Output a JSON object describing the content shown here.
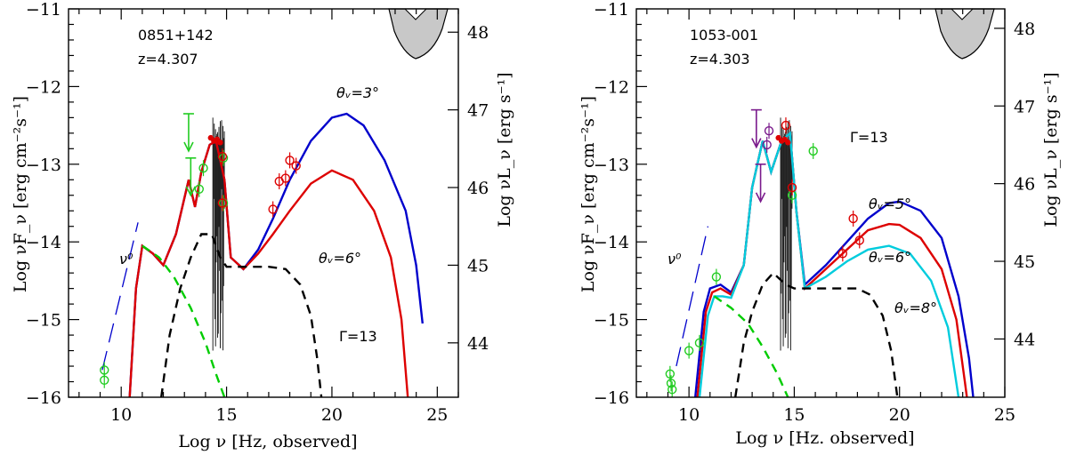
{
  "chart_data": [
    {
      "type": "line",
      "source_name": "0851+142",
      "redshift_text": "z=4.307",
      "gamma_text": "Γ=13",
      "nu0_text": "ν⁰",
      "xlabel": "Log ν  [Hz, observed]",
      "ylabel": "Log νF_ν  [erg cm⁻²s⁻¹]",
      "ylabel_right": "Log νL_ν  [erg s⁻¹]",
      "xlim": [
        7.5,
        26
      ],
      "ylim": [
        -16,
        -11
      ],
      "xticks": [
        10,
        15,
        20,
        25
      ],
      "yticks": [
        -16,
        -15,
        -14,
        -13,
        -12,
        -11
      ],
      "right_ticks": [
        44,
        45,
        46,
        47,
        48
      ],
      "right_tick_y": [
        -15.3,
        -14.3,
        -13.3,
        -12.3,
        -11.3
      ],
      "series": [
        {
          "label": "θᵥ=3°",
          "color": "#0000cc",
          "style": "solid",
          "points": [
            [
              10.4,
              -16
            ],
            [
              10.7,
              -14.6
            ],
            [
              11,
              -14.05
            ],
            [
              11.5,
              -14.15
            ],
            [
              12,
              -14.3
            ],
            [
              12.6,
              -13.9
            ],
            [
              13.2,
              -13.2
            ],
            [
              13.5,
              -13.55
            ],
            [
              13.8,
              -13.1
            ],
            [
              14.2,
              -12.75
            ],
            [
              14.5,
              -12.7
            ],
            [
              14.9,
              -13.2
            ],
            [
              15.2,
              -14.2
            ],
            [
              15.8,
              -14.35
            ],
            [
              16.5,
              -14.1
            ],
            [
              17.2,
              -13.7
            ],
            [
              18,
              -13.2
            ],
            [
              19,
              -12.7
            ],
            [
              20,
              -12.4
            ],
            [
              20.7,
              -12.35
            ],
            [
              21.5,
              -12.5
            ],
            [
              22.5,
              -12.95
            ],
            [
              23.5,
              -13.6
            ],
            [
              24,
              -14.3
            ],
            [
              24.3,
              -15.05
            ]
          ]
        },
        {
          "label": "θᵥ=6°",
          "color": "#dd0000",
          "style": "solid",
          "points": [
            [
              10.4,
              -16
            ],
            [
              10.7,
              -14.6
            ],
            [
              11,
              -14.05
            ],
            [
              11.5,
              -14.15
            ],
            [
              12,
              -14.3
            ],
            [
              12.6,
              -13.9
            ],
            [
              13.2,
              -13.2
            ],
            [
              13.5,
              -13.55
            ],
            [
              13.8,
              -13.1
            ],
            [
              14.2,
              -12.75
            ],
            [
              14.5,
              -12.7
            ],
            [
              14.9,
              -13.2
            ],
            [
              15.2,
              -14.2
            ],
            [
              15.8,
              -14.35
            ],
            [
              16.5,
              -14.15
            ],
            [
              17.2,
              -13.9
            ],
            [
              18,
              -13.6
            ],
            [
              19,
              -13.25
            ],
            [
              20,
              -13.08
            ],
            [
              21,
              -13.2
            ],
            [
              22,
              -13.6
            ],
            [
              22.8,
              -14.2
            ],
            [
              23.3,
              -15
            ],
            [
              23.6,
              -16
            ]
          ]
        },
        {
          "label": "",
          "color": "#00cc00",
          "style": "dashed",
          "points": [
            [
              11,
              -14.05
            ],
            [
              11.8,
              -14.2
            ],
            [
              12.5,
              -14.45
            ],
            [
              13.3,
              -14.85
            ],
            [
              14,
              -15.3
            ],
            [
              14.5,
              -15.7
            ],
            [
              14.9,
              -16
            ]
          ]
        },
        {
          "label": "",
          "color": "#000000",
          "style": "dashed",
          "points": [
            [
              11.9,
              -16
            ],
            [
              12.3,
              -15.2
            ],
            [
              12.8,
              -14.6
            ],
            [
              13.3,
              -14.2
            ],
            [
              13.8,
              -13.9
            ],
            [
              14.3,
              -13.9
            ],
            [
              14.7,
              -14.2
            ],
            [
              15,
              -14.32
            ],
            [
              16,
              -14.32
            ],
            [
              17,
              -14.32
            ],
            [
              17.8,
              -14.35
            ],
            [
              18.5,
              -14.55
            ],
            [
              19,
              -14.95
            ],
            [
              19.3,
              -15.5
            ],
            [
              19.5,
              -16
            ]
          ]
        },
        {
          "label": "",
          "color": "#0000cc",
          "style": "longdash",
          "points": [
            [
              9.1,
              -15.65
            ],
            [
              10.8,
              -13.75
            ]
          ]
        }
      ],
      "data_points": {
        "red_circles": [
          [
            14.8,
            -12.9
          ],
          [
            14.8,
            -13.5
          ],
          [
            17.2,
            -13.58
          ],
          [
            17.5,
            -13.22
          ],
          [
            17.8,
            -13.18
          ],
          [
            18,
            -12.95
          ],
          [
            18.3,
            -13.02
          ]
        ],
        "green_circles": [
          [
            9.2,
            -15.65
          ],
          [
            9.2,
            -15.78
          ],
          [
            13.7,
            -13.32
          ],
          [
            13.9,
            -13.05
          ],
          [
            14.85,
            -12.92
          ],
          [
            14.85,
            -13.5
          ]
        ],
        "green_upper_limits": [
          [
            13.2,
            -12.35
          ],
          [
            13.3,
            -12.92
          ]
        ]
      }
    },
    {
      "type": "line",
      "source_name": "1053-001",
      "redshift_text": "z=4.303",
      "gamma_text": "Γ=13",
      "nu0_text": "ν⁰",
      "xlabel": "Log ν  [Hz. observed]",
      "ylabel": "Log νF_ν  [erg cm⁻²s⁻¹]",
      "ylabel_right": "Log νL_ν  [erg s⁻¹]",
      "xlim": [
        7.5,
        25
      ],
      "ylim": [
        -16,
        -11
      ],
      "xticks": [
        10,
        15,
        20,
        25
      ],
      "yticks": [
        -16,
        -15,
        -14,
        -13,
        -12,
        -11
      ],
      "right_ticks": [
        44,
        45,
        46,
        47,
        48
      ],
      "right_tick_y": [
        -15.25,
        -14.25,
        -13.25,
        -12.25,
        -11.25
      ],
      "series": [
        {
          "label": "θᵥ=5°",
          "color": "#0000cc",
          "style": "solid",
          "points": [
            [
              10.3,
              -16
            ],
            [
              10.7,
              -14.9
            ],
            [
              11,
              -14.6
            ],
            [
              11.5,
              -14.55
            ],
            [
              12,
              -14.65
            ],
            [
              12.6,
              -14.3
            ],
            [
              13,
              -13.3
            ],
            [
              13.5,
              -12.7
            ],
            [
              13.9,
              -13.1
            ],
            [
              14.4,
              -12.7
            ],
            [
              14.8,
              -12.6
            ],
            [
              15.1,
              -13.6
            ],
            [
              15.5,
              -14.55
            ],
            [
              16.5,
              -14.3
            ],
            [
              17.5,
              -14
            ],
            [
              18.5,
              -13.7
            ],
            [
              19.5,
              -13.5
            ],
            [
              20,
              -13.48
            ],
            [
              21,
              -13.6
            ],
            [
              22,
              -13.95
            ],
            [
              22.8,
              -14.7
            ],
            [
              23.3,
              -15.5
            ],
            [
              23.5,
              -16
            ]
          ]
        },
        {
          "label": "θᵥ=6°",
          "color": "#dd0000",
          "style": "solid",
          "points": [
            [
              10.4,
              -16
            ],
            [
              10.8,
              -14.9
            ],
            [
              11.1,
              -14.65
            ],
            [
              11.5,
              -14.6
            ],
            [
              12,
              -14.68
            ],
            [
              12.6,
              -14.3
            ],
            [
              13,
              -13.3
            ],
            [
              13.5,
              -12.7
            ],
            [
              13.9,
              -13.1
            ],
            [
              14.4,
              -12.7
            ],
            [
              14.8,
              -12.6
            ],
            [
              15.1,
              -13.6
            ],
            [
              15.5,
              -14.6
            ],
            [
              16.5,
              -14.35
            ],
            [
              17.5,
              -14.1
            ],
            [
              18.5,
              -13.85
            ],
            [
              19.5,
              -13.77
            ],
            [
              20,
              -13.78
            ],
            [
              21,
              -13.95
            ],
            [
              22,
              -14.35
            ],
            [
              22.7,
              -15
            ],
            [
              23.1,
              -15.8
            ],
            [
              23.2,
              -16
            ]
          ]
        },
        {
          "label": "θᵥ=8°",
          "color": "#00ccdd",
          "style": "solid",
          "points": [
            [
              10.5,
              -16
            ],
            [
              10.9,
              -14.95
            ],
            [
              11.2,
              -14.7
            ],
            [
              11.6,
              -14.7
            ],
            [
              12,
              -14.72
            ],
            [
              12.6,
              -14.3
            ],
            [
              13,
              -13.3
            ],
            [
              13.5,
              -12.7
            ],
            [
              13.9,
              -13.1
            ],
            [
              14.4,
              -12.7
            ],
            [
              14.8,
              -12.6
            ],
            [
              15.1,
              -13.6
            ],
            [
              15.5,
              -14.6
            ],
            [
              16.5,
              -14.45
            ],
            [
              17.5,
              -14.25
            ],
            [
              18.5,
              -14.1
            ],
            [
              19.5,
              -14.05
            ],
            [
              20.5,
              -14.15
            ],
            [
              21.5,
              -14.5
            ],
            [
              22.3,
              -15.1
            ],
            [
              22.8,
              -16
            ]
          ]
        },
        {
          "label": "",
          "color": "#00cc00",
          "style": "dashed",
          "points": [
            [
              11.2,
              -14.7
            ],
            [
              12,
              -14.85
            ],
            [
              12.8,
              -15.05
            ],
            [
              13.5,
              -15.35
            ],
            [
              14.2,
              -15.7
            ],
            [
              14.7,
              -16
            ]
          ]
        },
        {
          "label": "",
          "color": "#000000",
          "style": "dashed",
          "points": [
            [
              12.2,
              -16
            ],
            [
              12.6,
              -15.3
            ],
            [
              13,
              -14.9
            ],
            [
              13.5,
              -14.55
            ],
            [
              14,
              -14.4
            ],
            [
              14.6,
              -14.55
            ],
            [
              15,
              -14.6
            ],
            [
              16,
              -14.6
            ],
            [
              17,
              -14.6
            ],
            [
              18,
              -14.6
            ],
            [
              18.6,
              -14.68
            ],
            [
              19.2,
              -14.95
            ],
            [
              19.6,
              -15.4
            ],
            [
              19.9,
              -16
            ]
          ]
        },
        {
          "label": "",
          "color": "#0000cc",
          "style": "longdash",
          "points": [
            [
              9.4,
              -15.6
            ],
            [
              10.9,
              -13.8
            ]
          ]
        }
      ],
      "data_points": {
        "red_circles": [
          [
            14.6,
            -12.5
          ],
          [
            14.9,
            -13.3
          ],
          [
            17.3,
            -14.15
          ],
          [
            17.8,
            -13.7
          ],
          [
            18.1,
            -13.98
          ]
        ],
        "green_circles": [
          [
            9.1,
            -15.7
          ],
          [
            9.15,
            -15.82
          ],
          [
            9.2,
            -15.9
          ],
          [
            10,
            -15.4
          ],
          [
            10.5,
            -15.3
          ],
          [
            11.3,
            -14.45
          ],
          [
            14.9,
            -13.4
          ],
          [
            15.9,
            -12.83
          ]
        ],
        "purple_circles": [
          [
            13.8,
            -12.57
          ],
          [
            13.7,
            -12.75
          ]
        ],
        "purple_upper_limits": [
          [
            13.2,
            -12.3
          ],
          [
            13.4,
            -13.0
          ]
        ]
      }
    }
  ]
}
